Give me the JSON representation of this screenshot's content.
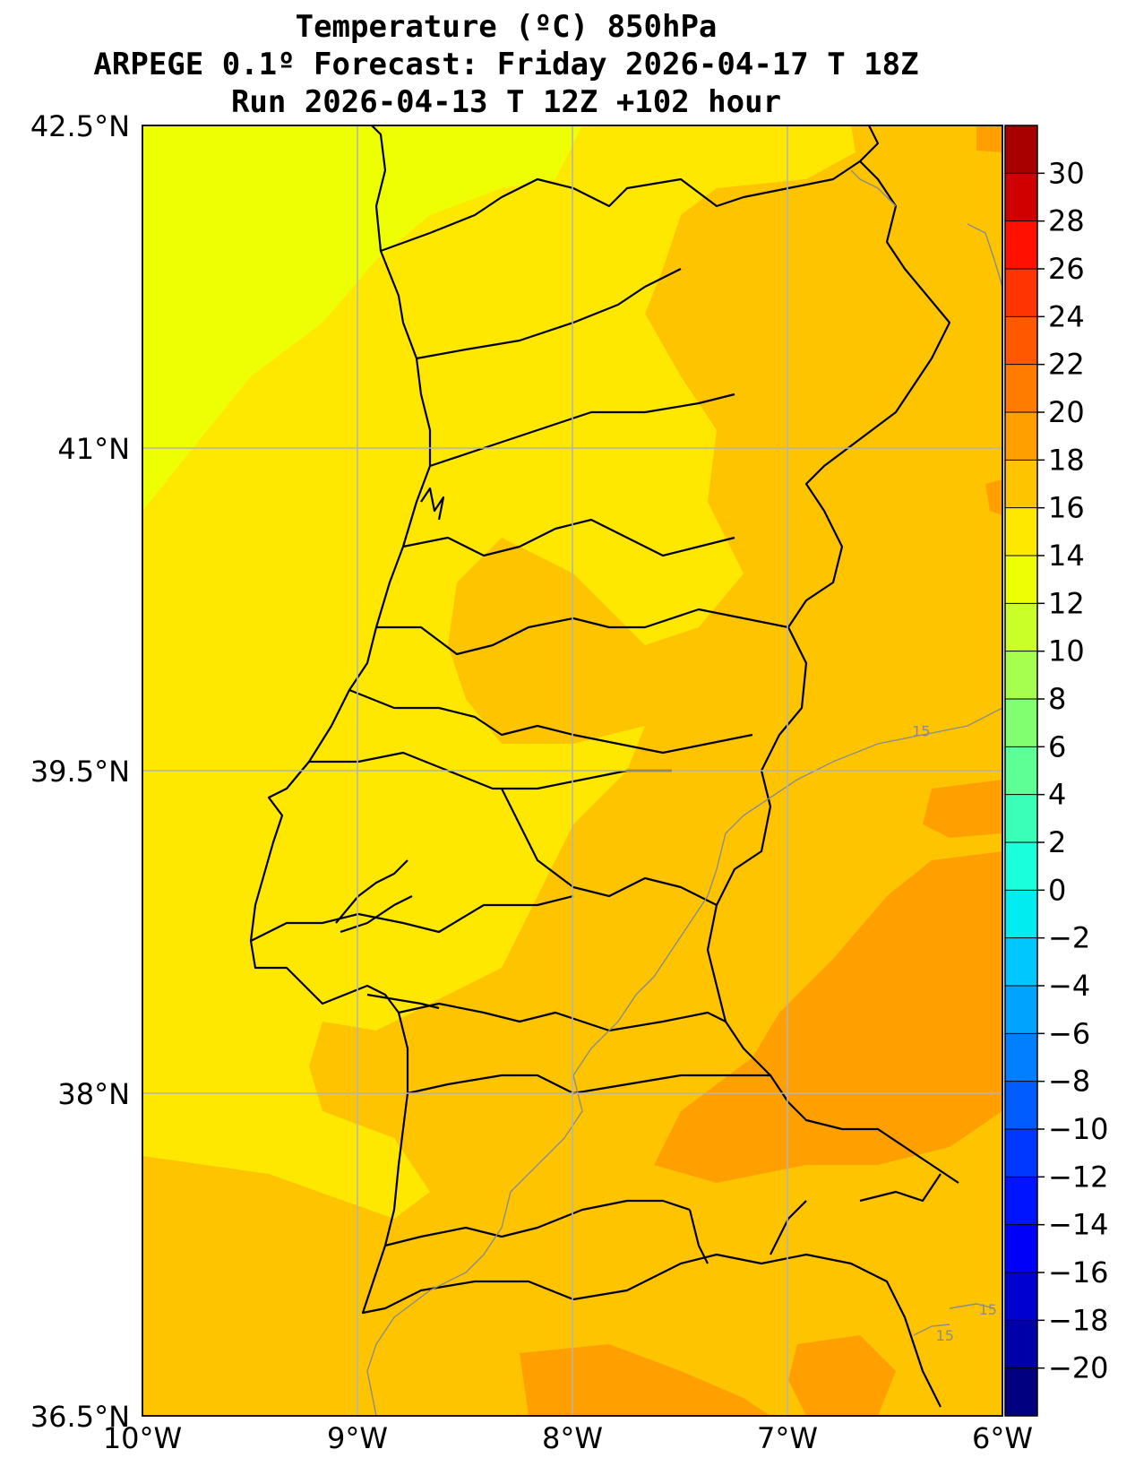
{
  "title": {
    "line1": "Temperature (ºC) 850hPa",
    "line2": "ARPEGE 0.1º Forecast: Friday 2026-04-17 T 18Z",
    "line3": "Run 2026-04-13 T 12Z +102 hour"
  },
  "map": {
    "lon_range": [
      -10,
      -6
    ],
    "lat_range": [
      36.5,
      42.5
    ],
    "grid": true,
    "lon_ticks": [
      {
        "value": -10,
        "label": "10°W"
      },
      {
        "value": -9,
        "label": "9°W"
      },
      {
        "value": -8,
        "label": "8°W"
      },
      {
        "value": -7,
        "label": "7°W"
      },
      {
        "value": -6,
        "label": "6°W"
      }
    ],
    "lat_ticks": [
      {
        "value": 42.5,
        "label": "42.5°N"
      },
      {
        "value": 41,
        "label": "41°N"
      },
      {
        "value": 39.5,
        "label": "39.5°N"
      },
      {
        "value": 38,
        "label": "38°N"
      },
      {
        "value": 36.5,
        "label": "36.5°N"
      }
    ],
    "isotherm_labels": [
      {
        "text": "15",
        "lon": -6.42,
        "lat": 39.66
      },
      {
        "text": "15",
        "lon": -6.11,
        "lat": 36.97
      },
      {
        "text": "15",
        "lon": -6.31,
        "lat": 36.85
      }
    ]
  },
  "colorbar": {
    "levels": [
      -22,
      -20,
      -18,
      -16,
      -14,
      -12,
      -10,
      -8,
      -6,
      -4,
      -2,
      0,
      2,
      4,
      6,
      8,
      10,
      12,
      14,
      16,
      18,
      20,
      22,
      24,
      26,
      28,
      30,
      32
    ],
    "colors": [
      "#000080",
      "#0000a8",
      "#0000d0",
      "#0000f8",
      "#0014ff",
      "#0038ff",
      "#005cff",
      "#0080ff",
      "#00a4ff",
      "#00c8ff",
      "#00ecf0",
      "#1affdc",
      "#3affb8",
      "#5eff94",
      "#82ff70",
      "#a6ff4c",
      "#caff28",
      "#eeff04",
      "#ffe800",
      "#ffc400",
      "#ffa000",
      "#ff7c00",
      "#ff5800",
      "#ff3400",
      "#ff1000",
      "#d00000",
      "#a80000",
      "#800000"
    ],
    "tick_labels": [
      "−20",
      "−18",
      "−16",
      "−14",
      "−12",
      "−10",
      "−8",
      "−6",
      "−4",
      "−2",
      "0",
      "2",
      "4",
      "6",
      "8",
      "10",
      "12",
      "14",
      "16",
      "18",
      "20",
      "22",
      "24",
      "26",
      "28",
      "30"
    ],
    "tick_values": [
      -20,
      -18,
      -16,
      -14,
      -12,
      -10,
      -8,
      -6,
      -4,
      -2,
      0,
      2,
      4,
      6,
      8,
      10,
      12,
      14,
      16,
      18,
      20,
      22,
      24,
      26,
      28,
      30
    ]
  }
}
